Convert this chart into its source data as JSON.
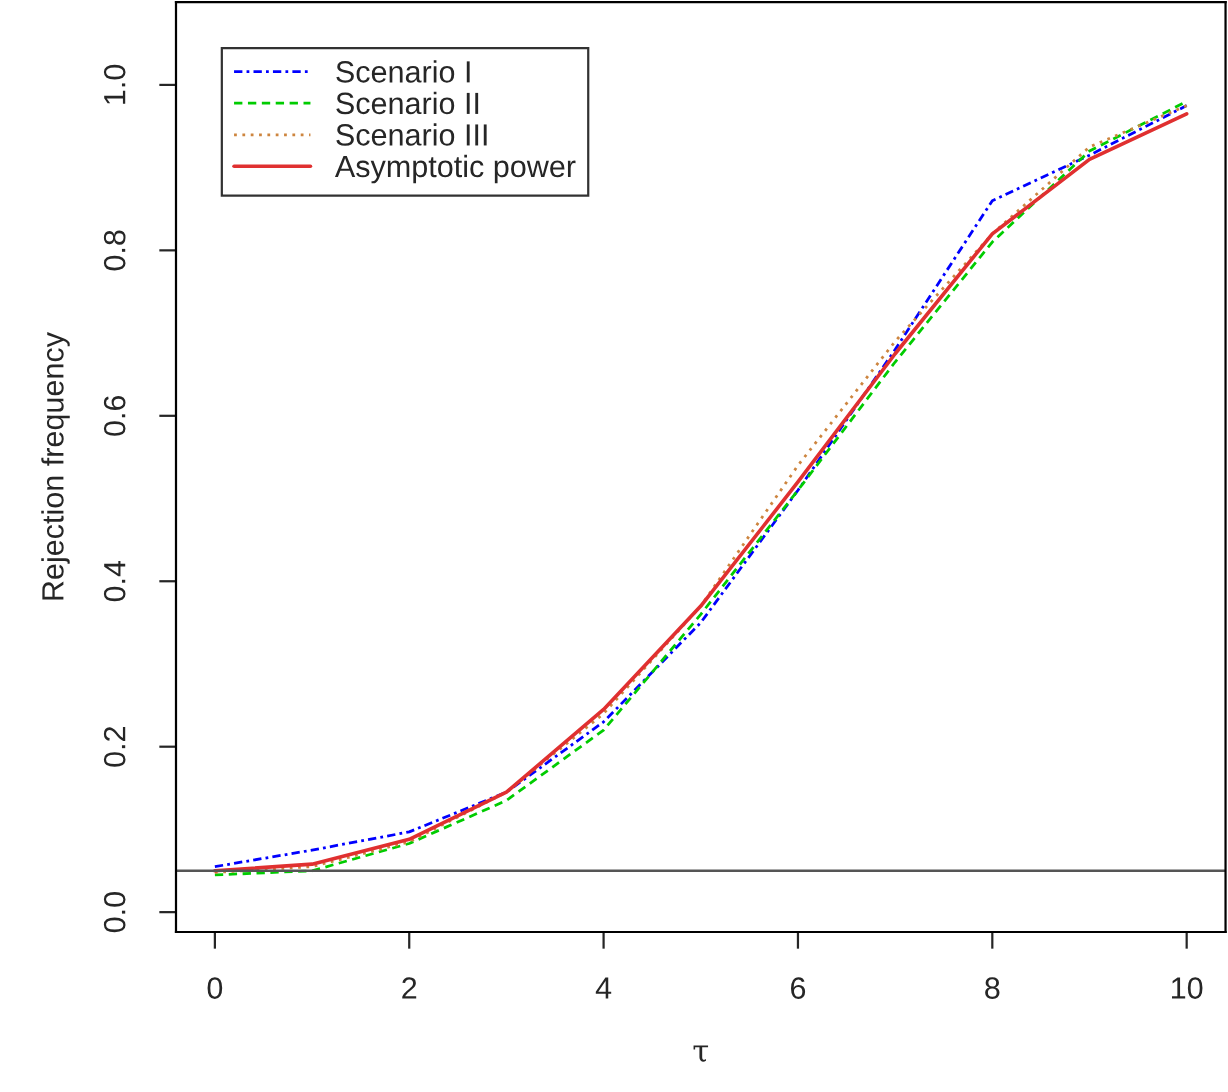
{
  "chart_data": {
    "type": "line",
    "xlabel": "τ",
    "ylabel": "Rejection frequency",
    "x": [
      0,
      1,
      2,
      3,
      4,
      5,
      6,
      7,
      8,
      9,
      10
    ],
    "series": [
      {
        "name": "Scenario I",
        "color": "#0000ff",
        "line_style": "dashdot",
        "values": [
          0.055,
          0.075,
          0.097,
          0.145,
          0.23,
          0.35,
          0.51,
          0.68,
          0.86,
          0.915,
          0.975
        ]
      },
      {
        "name": "Scenario II",
        "color": "#00cc00",
        "line_style": "dashed",
        "values": [
          0.045,
          0.05,
          0.083,
          0.135,
          0.22,
          0.36,
          0.51,
          0.665,
          0.81,
          0.92,
          0.98
        ]
      },
      {
        "name": "Scenario III",
        "color": "#cd853f",
        "line_style": "dotted",
        "values": [
          0.048,
          0.055,
          0.085,
          0.145,
          0.24,
          0.37,
          0.54,
          0.69,
          0.82,
          0.925,
          0.975
        ]
      },
      {
        "name": "Asymptotic power",
        "color": "#e03030",
        "line_style": "solid",
        "values": [
          0.05,
          0.058,
          0.088,
          0.145,
          0.245,
          0.37,
          0.52,
          0.675,
          0.82,
          0.91,
          0.965
        ]
      }
    ],
    "xlim": [
      -0.4,
      10.4
    ],
    "ylim": [
      -0.024,
      1.1
    ],
    "xticks": [
      0,
      2,
      4,
      6,
      8,
      10
    ],
    "yticks": [
      {
        "value": 0,
        "label": "0.0"
      },
      {
        "value": 0.2,
        "label": "0.2"
      },
      {
        "value": 0.4,
        "label": "0.4"
      },
      {
        "value": 0.6,
        "label": "0.6"
      },
      {
        "value": 0.8,
        "label": "0.8"
      },
      {
        "value": 1,
        "label": "1.0"
      }
    ],
    "ref_lines": [
      {
        "axis": "y",
        "value": 0.05,
        "color": "#555555"
      }
    ],
    "legend": "top left",
    "grid": false
  }
}
